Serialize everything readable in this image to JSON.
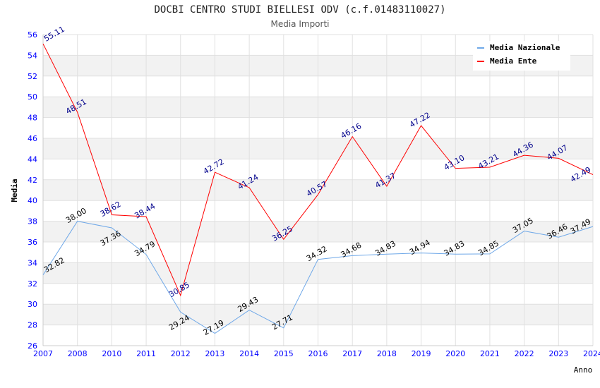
{
  "chart_data": {
    "type": "line",
    "title": "DOCBI CENTRO STUDI BIELLESI ODV (c.f.01483110027)",
    "subtitle": "Media Importi",
    "xlabel": "Anno",
    "ylabel": "Media",
    "ylim": [
      26,
      56
    ],
    "yticks": [
      26,
      28,
      30,
      32,
      34,
      36,
      38,
      40,
      42,
      44,
      46,
      48,
      50,
      52,
      54,
      56
    ],
    "categories": [
      "2007",
      "2008",
      "2010",
      "2011",
      "2012",
      "2013",
      "2014",
      "2015",
      "2016",
      "2017",
      "2018",
      "2019",
      "2020",
      "2021",
      "2022",
      "2023",
      "2024"
    ],
    "series": [
      {
        "name": "Media Nazionale",
        "color": "#6fa8e8",
        "label_color": "#000000",
        "values": [
          32.82,
          38.0,
          37.36,
          34.79,
          29.24,
          27.19,
          29.43,
          27.71,
          34.32,
          34.68,
          34.83,
          34.94,
          34.83,
          34.85,
          37.05,
          36.46,
          37.49
        ]
      },
      {
        "name": "Media Ente",
        "color": "#ff0000",
        "label_color": "#00008b",
        "values": [
          55.11,
          48.51,
          38.62,
          38.44,
          30.85,
          42.72,
          41.24,
          36.25,
          40.57,
          46.16,
          41.37,
          47.22,
          43.1,
          43.21,
          44.36,
          44.07,
          42.49
        ]
      }
    ],
    "legend": "top-right",
    "grid": true
  }
}
